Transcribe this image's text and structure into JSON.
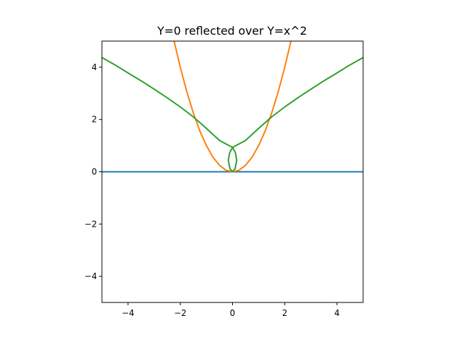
{
  "chart_data": {
    "type": "line",
    "title": "Y=0 reflected over Y=x^2",
    "xlabel": "",
    "ylabel": "",
    "xlim": [
      -5,
      5
    ],
    "ylim": [
      -5,
      5
    ],
    "grid": false,
    "legend": "none",
    "x_ticks": [
      -4,
      -2,
      0,
      2,
      4
    ],
    "y_ticks": [
      -4,
      -2,
      0,
      2,
      4
    ],
    "x_tick_labels": [
      "−4",
      "−2",
      "0",
      "2",
      "4"
    ],
    "y_tick_labels": [
      "−4",
      "−2",
      "0",
      "2",
      "4"
    ],
    "series": [
      {
        "color": "#1f77b4",
        "points": [
          [
            -5,
            0
          ],
          [
            5,
            0
          ]
        ]
      },
      {
        "color": "#ff7f0e",
        "points": [
          [
            -2.25,
            5.06
          ],
          [
            -2.0,
            4.0
          ],
          [
            -1.75,
            3.06
          ],
          [
            -1.5,
            2.25
          ],
          [
            -1.25,
            1.56
          ],
          [
            -1.0,
            1.0
          ],
          [
            -0.75,
            0.56
          ],
          [
            -0.5,
            0.25
          ],
          [
            -0.25,
            0.06
          ],
          [
            0.0,
            0.0
          ],
          [
            0.25,
            0.06
          ],
          [
            0.5,
            0.25
          ],
          [
            0.75,
            0.56
          ],
          [
            1.0,
            1.0
          ],
          [
            1.25,
            1.56
          ],
          [
            1.5,
            2.25
          ],
          [
            1.75,
            3.06
          ],
          [
            2.0,
            4.0
          ],
          [
            2.25,
            5.06
          ]
        ]
      },
      {
        "color": "#2ca02c",
        "points": [
          [
            -5.0,
            4.37
          ],
          [
            -4.5,
            4.09
          ],
          [
            -4.0,
            3.78
          ],
          [
            -3.5,
            3.48
          ],
          [
            -3.0,
            3.16
          ],
          [
            -2.5,
            2.83
          ],
          [
            -2.0,
            2.48
          ],
          [
            -1.5,
            2.1
          ],
          [
            -1.0,
            1.66
          ],
          [
            -0.5,
            1.2
          ],
          [
            0.0,
            0.93
          ],
          [
            0.11,
            0.73
          ],
          [
            0.16,
            0.44
          ],
          [
            0.1,
            0.12
          ],
          [
            0.0,
            0.0
          ],
          [
            -0.1,
            0.12
          ],
          [
            -0.16,
            0.44
          ],
          [
            -0.11,
            0.73
          ],
          [
            0.0,
            0.93
          ],
          [
            0.5,
            1.2
          ],
          [
            1.0,
            1.66
          ],
          [
            1.5,
            2.1
          ],
          [
            2.0,
            2.48
          ],
          [
            2.5,
            2.83
          ],
          [
            3.0,
            3.16
          ],
          [
            3.5,
            3.48
          ],
          [
            4.0,
            3.78
          ],
          [
            4.5,
            4.09
          ],
          [
            5.0,
            4.37
          ]
        ]
      }
    ]
  }
}
